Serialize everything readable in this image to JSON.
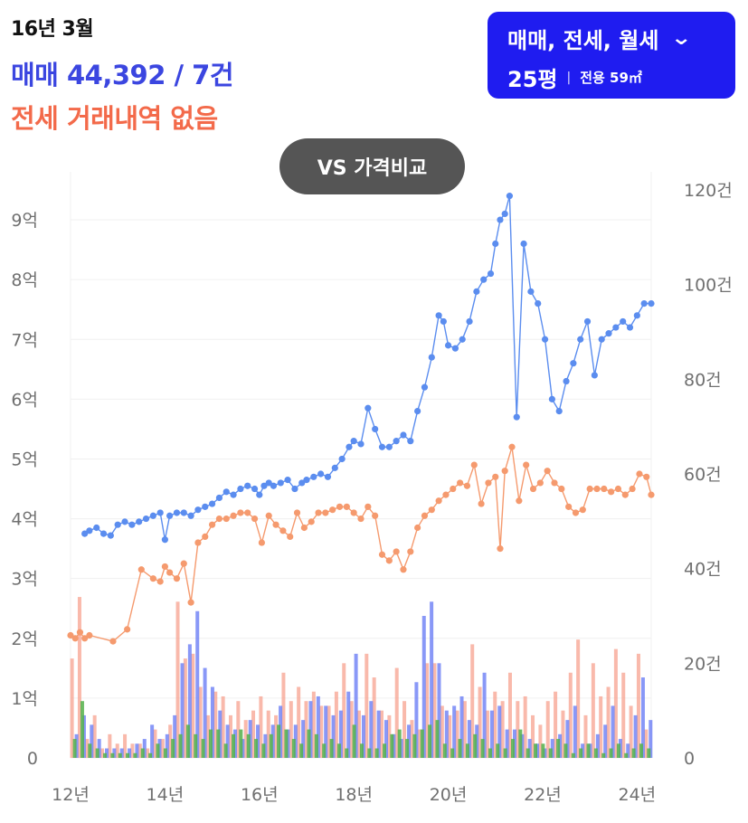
{
  "header": {
    "period": "16년 3월",
    "sale_label": "매매",
    "sale_value": "44,392 / 7건",
    "jeonse_text": "전세 거래내역 없음"
  },
  "filter": {
    "type_label": "매매, 전세, 월세",
    "chevron_icon": "chevron-down-icon",
    "area_label": "25평",
    "separator": "|",
    "exclusive_label": "전용 59㎡"
  },
  "compare_button": "VS 가격비교",
  "colors": {
    "sale": "#5b8def",
    "jeonse": "#f59a6e",
    "volume_sale": "#6c7ef5",
    "volume_jeonse": "#f7a28f",
    "volume_rent": "#53b04a",
    "button": "#1f1cf0"
  },
  "chart_data": {
    "type": "line",
    "x_ticks": [
      "12년",
      "14년",
      "16년",
      "18년",
      "20년",
      "22년",
      "24년"
    ],
    "x_range": [
      2012.0,
      2024.3
    ],
    "y_left_ticks": [
      "0",
      "1억",
      "2억",
      "3억",
      "4억",
      "5억",
      "6억",
      "7억",
      "8억",
      "9억"
    ],
    "y_left_range": [
      0,
      9.5
    ],
    "y_right_ticks": [
      "0",
      "20건",
      "40건",
      "60건",
      "80건",
      "100건",
      "120건"
    ],
    "y_right_range": [
      0,
      120
    ],
    "grid": true,
    "series": [
      {
        "key": "sale",
        "x": [
          2012.3,
          2012.4,
          2012.55,
          2012.7,
          2012.85,
          2013.0,
          2013.15,
          2013.3,
          2013.45,
          2013.6,
          2013.75,
          2013.9,
          2014.0,
          2014.1,
          2014.25,
          2014.4,
          2014.55,
          2014.7,
          2014.85,
          2015.0,
          2015.15,
          2015.3,
          2015.45,
          2015.6,
          2015.75,
          2015.9,
          2016.0,
          2016.1,
          2016.2,
          2016.3,
          2016.45,
          2016.6,
          2016.75,
          2016.9,
          2017.0,
          2017.15,
          2017.3,
          2017.45,
          2017.6,
          2017.75,
          2017.9,
          2018.0,
          2018.15,
          2018.3,
          2018.45,
          2018.6,
          2018.75,
          2018.9,
          2019.05,
          2019.2,
          2019.35,
          2019.5,
          2019.65,
          2019.8,
          2019.9,
          2020.0,
          2020.15,
          2020.3,
          2020.45,
          2020.6,
          2020.75,
          2020.9,
          2021.0,
          2021.1,
          2021.2,
          2021.3,
          2021.45,
          2021.6,
          2021.75,
          2021.9,
          2022.05,
          2022.2,
          2022.35,
          2022.5,
          2022.65,
          2022.8,
          2022.95,
          2023.1,
          2023.25,
          2023.4,
          2023.55,
          2023.7,
          2023.85,
          2024.0,
          2024.15,
          2024.3
        ],
        "y": [
          3.75,
          3.8,
          3.85,
          3.75,
          3.72,
          3.9,
          3.95,
          3.9,
          3.95,
          4.0,
          4.05,
          4.1,
          3.65,
          4.05,
          4.1,
          4.1,
          4.05,
          4.15,
          4.2,
          4.25,
          4.35,
          4.45,
          4.4,
          4.5,
          4.55,
          4.5,
          4.4,
          4.55,
          4.6,
          4.55,
          4.6,
          4.65,
          4.5,
          4.6,
          4.65,
          4.7,
          4.75,
          4.7,
          4.85,
          5.0,
          5.2,
          5.3,
          5.25,
          5.85,
          5.5,
          5.2,
          5.2,
          5.3,
          5.4,
          5.3,
          5.8,
          6.2,
          6.7,
          7.4,
          7.3,
          6.9,
          6.85,
          7.0,
          7.3,
          7.8,
          8.0,
          8.1,
          8.6,
          9.0,
          9.1,
          9.4,
          5.7,
          8.6,
          7.8,
          7.6,
          7.0,
          6.0,
          5.8,
          6.3,
          6.6,
          7.0,
          7.3,
          6.4,
          7.0,
          7.1,
          7.2,
          7.3,
          7.2,
          7.4,
          7.6,
          7.6
        ]
      },
      {
        "key": "jeonse",
        "x": [
          2012.0,
          2012.1,
          2012.2,
          2012.3,
          2012.4,
          2012.9,
          2013.2,
          2013.5,
          2013.75,
          2013.9,
          2014.0,
          2014.1,
          2014.25,
          2014.4,
          2014.55,
          2014.7,
          2014.85,
          2015.0,
          2015.15,
          2015.3,
          2015.45,
          2015.6,
          2015.75,
          2015.9,
          2016.05,
          2016.2,
          2016.35,
          2016.5,
          2016.65,
          2016.8,
          2016.95,
          2017.1,
          2017.25,
          2017.4,
          2017.55,
          2017.7,
          2017.85,
          2018.0,
          2018.15,
          2018.3,
          2018.45,
          2018.6,
          2018.75,
          2018.9,
          2019.05,
          2019.2,
          2019.35,
          2019.5,
          2019.65,
          2019.8,
          2019.95,
          2020.1,
          2020.25,
          2020.4,
          2020.55,
          2020.7,
          2020.85,
          2021.0,
          2021.1,
          2021.2,
          2021.35,
          2021.5,
          2021.65,
          2021.8,
          2021.95,
          2022.1,
          2022.25,
          2022.4,
          2022.55,
          2022.7,
          2022.85,
          2023.0,
          2023.15,
          2023.3,
          2023.45,
          2023.6,
          2023.75,
          2023.9,
          2024.05,
          2024.2,
          2024.3
        ],
        "y": [
          2.05,
          2.0,
          2.1,
          2.0,
          2.05,
          1.95,
          2.15,
          3.15,
          3.0,
          2.95,
          3.2,
          3.1,
          3.0,
          3.25,
          2.6,
          3.6,
          3.7,
          3.9,
          4.0,
          4.0,
          4.05,
          4.1,
          4.1,
          4.0,
          3.6,
          4.05,
          3.9,
          3.8,
          3.7,
          4.1,
          3.85,
          3.95,
          4.1,
          4.1,
          4.15,
          4.2,
          4.2,
          4.1,
          4.0,
          4.2,
          4.05,
          3.4,
          3.3,
          3.45,
          3.15,
          3.45,
          3.85,
          4.05,
          4.15,
          4.3,
          4.4,
          4.5,
          4.6,
          4.55,
          4.9,
          4.25,
          4.6,
          4.7,
          3.5,
          4.8,
          5.2,
          4.3,
          4.9,
          4.5,
          4.6,
          4.8,
          4.6,
          4.5,
          4.2,
          4.1,
          4.15,
          4.5,
          4.5,
          4.5,
          4.45,
          4.5,
          4.4,
          4.5,
          4.75,
          4.7,
          4.4
        ]
      }
    ],
    "volume": {
      "x_start": 2012.05,
      "x_step": 0.16,
      "sale": [
        5,
        9,
        7,
        4,
        2,
        2,
        2,
        2,
        3,
        4,
        7,
        4,
        5,
        9,
        20,
        24,
        31,
        19,
        15,
        10,
        7,
        6,
        4,
        8,
        7,
        5,
        7,
        11,
        6,
        7,
        8,
        12,
        13,
        11,
        9,
        10,
        14,
        22,
        9,
        12,
        10,
        8,
        5,
        4,
        7,
        16,
        30,
        33,
        20,
        10,
        11,
        13,
        8,
        7,
        18,
        10,
        11,
        6,
        6,
        5,
        4,
        3,
        2,
        4,
        5,
        8,
        11,
        3,
        3,
        5,
        7,
        11,
        4,
        3,
        9,
        17,
        8
      ],
      "jeonse": [
        21,
        34,
        4,
        9,
        2,
        5,
        3,
        5,
        3,
        3,
        2,
        6,
        4,
        7,
        33,
        21,
        22,
        15,
        9,
        14,
        13,
        9,
        12,
        8,
        10,
        13,
        10,
        9,
        18,
        12,
        15,
        12,
        14,
        11,
        11,
        14,
        20,
        12,
        10,
        22,
        17,
        10,
        9,
        19,
        12,
        8,
        6,
        20,
        20,
        11,
        9,
        10,
        12,
        24,
        15,
        10,
        14,
        12,
        18,
        12,
        13,
        9,
        7,
        12,
        14,
        10,
        18,
        25,
        9,
        20,
        13,
        15,
        23,
        18,
        11,
        22,
        6
      ],
      "rent": [
        4,
        12,
        3,
        2,
        1,
        1,
        1,
        1,
        1,
        2,
        1,
        3,
        2,
        4,
        5,
        7,
        5,
        4,
        6,
        6,
        3,
        5,
        6,
        5,
        4,
        3,
        5,
        7,
        6,
        4,
        3,
        6,
        5,
        3,
        4,
        3,
        2,
        7,
        3,
        2,
        2,
        3,
        5,
        6,
        4,
        5,
        6,
        7,
        8,
        3,
        2,
        4,
        3,
        5,
        4,
        2,
        3,
        2,
        4,
        6,
        2,
        3,
        3,
        2,
        4,
        3,
        1,
        2,
        3,
        2,
        1,
        2,
        3,
        1,
        2,
        3,
        2
      ]
    }
  }
}
